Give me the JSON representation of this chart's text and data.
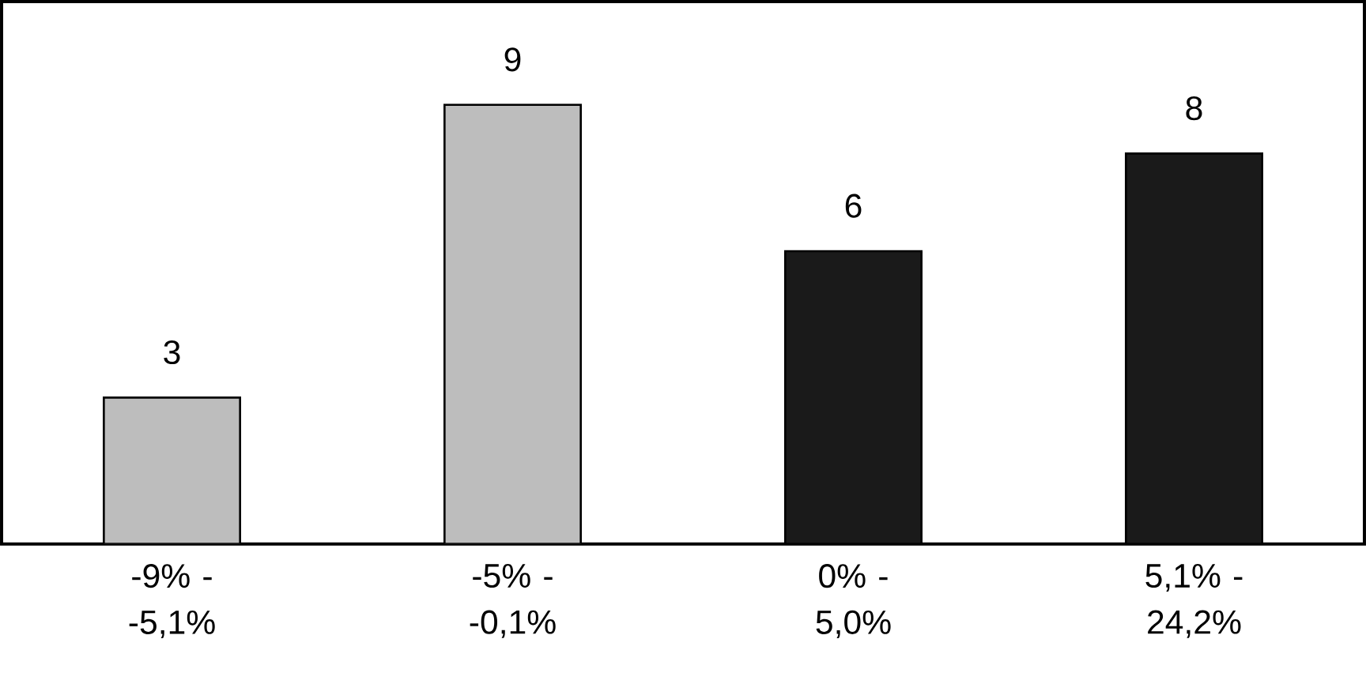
{
  "chart_data": {
    "type": "bar",
    "categories": [
      "-9% - -5,1%",
      "-5% - -0,1%",
      "0% - 5,0%",
      "5,1% - 24,2%"
    ],
    "values": [
      3,
      9,
      6,
      8
    ],
    "colors": [
      "#bdbdbd",
      "#bdbdbd",
      "#1a1a1a",
      "#1a1a1a"
    ],
    "data_labels": true
  }
}
